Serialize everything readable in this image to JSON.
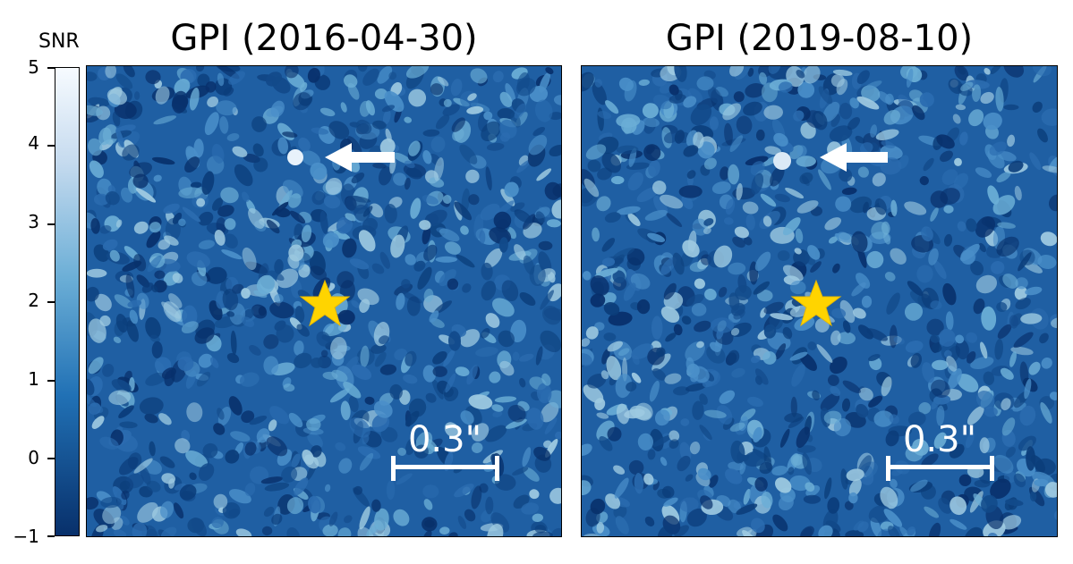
{
  "colorbar": {
    "label": "SNR",
    "ticks": [
      "5",
      "4",
      "3",
      "2",
      "1",
      "0",
      "−1"
    ],
    "range": [
      -1,
      5
    ],
    "colormap": "Blues"
  },
  "panels": [
    {
      "title": "GPI (2016-04-30)",
      "scalebar_label": "0.3\""
    },
    {
      "title": "GPI (2019-08-10)",
      "scalebar_label": "0.3\""
    }
  ],
  "markers": {
    "star_color": "#ffd400",
    "arrow_color": "#ffffff"
  }
}
